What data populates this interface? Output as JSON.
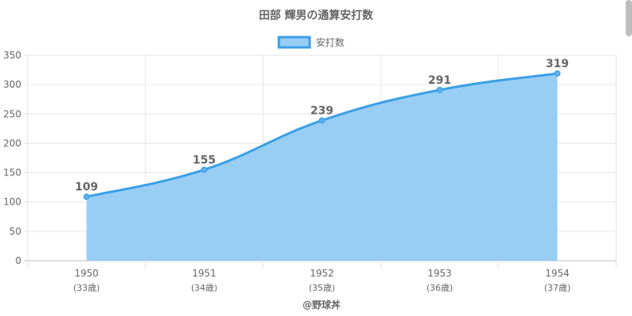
{
  "chart_data": {
    "type": "area",
    "title": "田部 輝男の通算安打数",
    "legend": {
      "label": "安打数",
      "position": "top"
    },
    "categories": [
      "1950",
      "1951",
      "1952",
      "1953",
      "1954"
    ],
    "sublabels": [
      "(33歳)",
      "(34歳)",
      "(35歳)",
      "(36歳)",
      "(37歳)"
    ],
    "series": [
      {
        "name": "安打数",
        "values": [
          109,
          155,
          239,
          291,
          319
        ]
      }
    ],
    "yticks": [
      "0",
      "50",
      "100",
      "150",
      "200",
      "250",
      "300",
      "350"
    ],
    "ylim": [
      0,
      350
    ],
    "xlabel": "",
    "ylabel": "",
    "grid": true,
    "data_labels": true,
    "colors": {
      "line": "#3a9fe6",
      "fill": "#98cdf4",
      "point": "#5aaef0",
      "grid": "#e6e6e6",
      "axis": "#bdbdbd",
      "text": "#666666"
    }
  },
  "footer": {
    "credit": "@野球丼"
  }
}
